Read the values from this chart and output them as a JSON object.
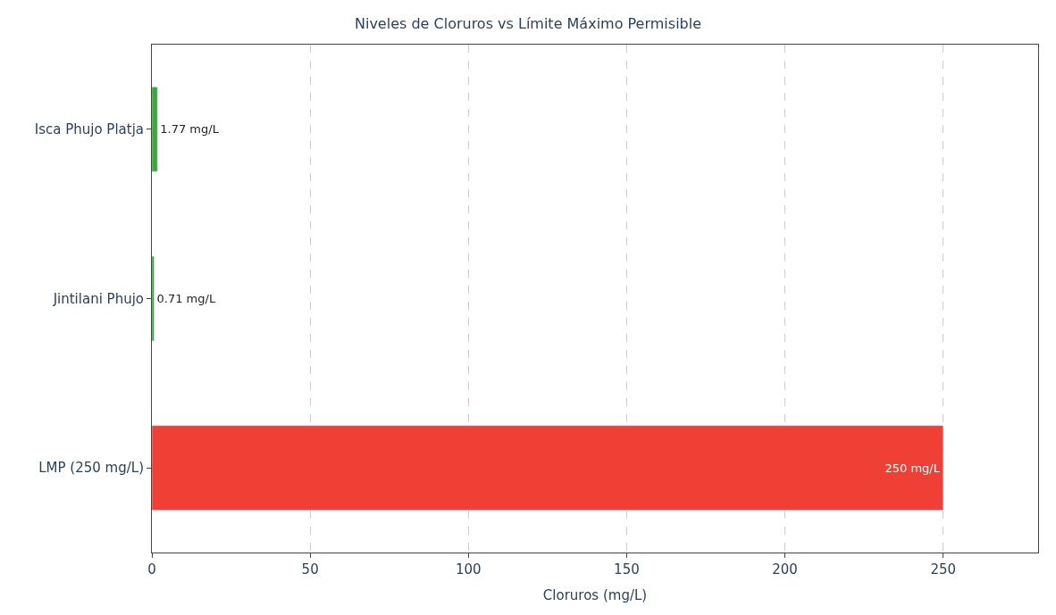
{
  "chart_data": {
    "type": "bar",
    "orientation": "horizontal",
    "title": "Niveles de Cloruros vs Límite Máximo Permisible",
    "xlabel": "Cloruros (mg/L)",
    "categories": [
      "Isca Phujo Platja",
      "Jintilani Phujo",
      "LMP (250 mg/L)"
    ],
    "values": [
      1.77,
      0.71,
      250
    ],
    "colors": [
      "#3fa53f",
      "#3fa53f",
      "#f04035"
    ],
    "value_labels": [
      "1.77 mg/L",
      "0.71 mg/L",
      "250 mg/L"
    ],
    "xlim": [
      0,
      280
    ],
    "xticks": [
      0,
      50,
      100,
      150,
      200,
      250
    ],
    "grid": "x",
    "line_style": "dashed"
  }
}
